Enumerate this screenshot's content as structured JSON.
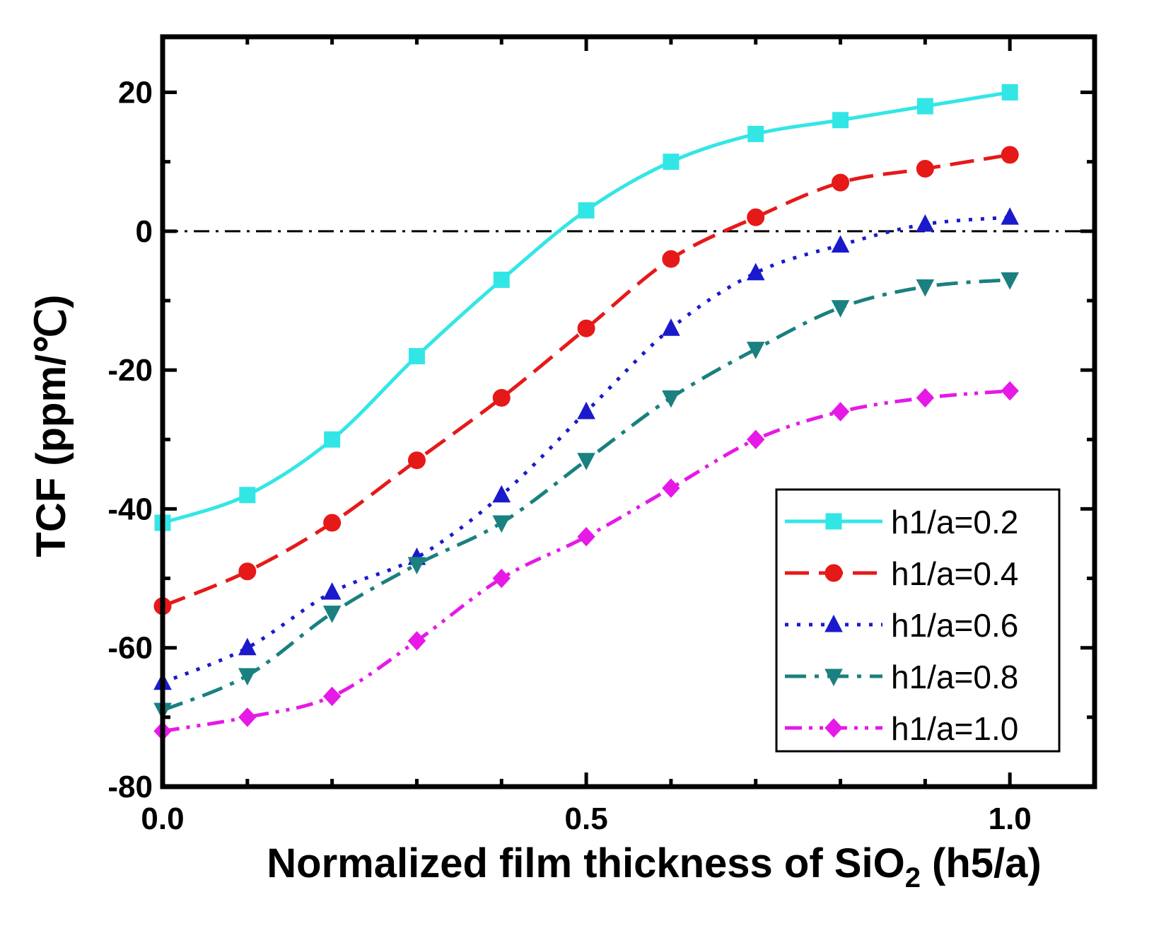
{
  "chart_data": {
    "type": "line",
    "title": "",
    "xlabel": "Normalized film thickness of SiO",
    "xlabel_subscript": "2",
    "xlabel_suffix": " (h5/a)",
    "ylabel": "TCF (ppm/℃)",
    "xlim": [
      0.0,
      1.1
    ],
    "ylim": [
      -80,
      28
    ],
    "xticks": [
      0.0,
      0.5,
      1.0
    ],
    "xtick_labels": [
      "0.0",
      "0.5",
      "1.0"
    ],
    "yticks": [
      20,
      0,
      -20,
      -40,
      -60,
      -80
    ],
    "ytick_labels": [
      "20",
      "0",
      "-20",
      "-40",
      "-60",
      "-80"
    ],
    "grid": false,
    "legend_position": "bottom-right",
    "reference_line": {
      "y": 0,
      "style": "dash-dot",
      "color": "#000000"
    },
    "x": [
      0.0,
      0.1,
      0.2,
      0.3,
      0.4,
      0.5,
      0.6,
      0.7,
      0.8,
      0.9,
      1.0
    ],
    "series": [
      {
        "name": "h1/a=0.2",
        "color": "#33e6e6",
        "marker": "square",
        "dash": "solid",
        "values": [
          -42,
          -38,
          -30,
          -18,
          -7,
          3,
          10,
          14,
          16,
          18,
          20
        ]
      },
      {
        "name": "h1/a=0.4",
        "color": "#e61919",
        "marker": "circle",
        "dash": "dash",
        "values": [
          -54,
          -49,
          -42,
          -33,
          -24,
          -14,
          -4,
          2,
          7,
          9,
          11
        ]
      },
      {
        "name": "h1/a=0.6",
        "color": "#1a1acc",
        "marker": "triangle-up",
        "dash": "dot",
        "values": [
          -65,
          -60,
          -52,
          -47,
          -38,
          -26,
          -14,
          -6,
          -2,
          1,
          2
        ]
      },
      {
        "name": "h1/a=0.8",
        "color": "#1a8080",
        "marker": "triangle-down",
        "dash": "dashdot",
        "values": [
          -69,
          -64,
          -55,
          -48,
          -42,
          -33,
          -24,
          -17,
          -11,
          -8,
          -7
        ]
      },
      {
        "name": "h1/a=1.0",
        "color": "#e619e6",
        "marker": "diamond",
        "dash": "dashdotdot",
        "values": [
          -72,
          -70,
          -67,
          -59,
          -50,
          -44,
          -37,
          -30,
          -26,
          -24,
          -23
        ]
      }
    ]
  }
}
